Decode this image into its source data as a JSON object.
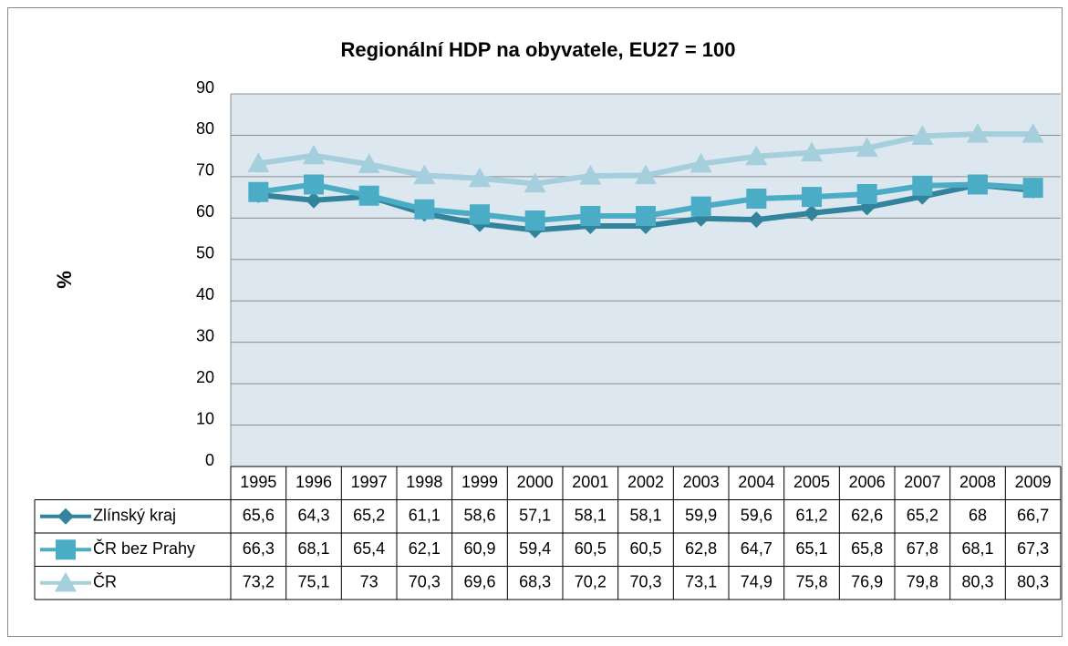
{
  "chart_data": {
    "type": "line",
    "title": "Regionální HDP na obyvatele, EU27 = 100",
    "y_label": "%",
    "categories": [
      "1995",
      "1996",
      "1997",
      "1998",
      "1999",
      "2000",
      "2001",
      "2002",
      "2003",
      "2004",
      "2005",
      "2006",
      "2007",
      "2008",
      "2009"
    ],
    "series": [
      {
        "name": "Zlínský kraj",
        "color": "#31849b",
        "marker": "diamond",
        "values": [
          65.6,
          64.3,
          65.2,
          61.1,
          58.6,
          57.1,
          58.1,
          58.1,
          59.9,
          59.6,
          61.2,
          62.6,
          65.2,
          68,
          66.7
        ],
        "value_labels": [
          "65,6",
          "64,3",
          "65,2",
          "61,1",
          "58,6",
          "57,1",
          "58,1",
          "58,1",
          "59,9",
          "59,6",
          "61,2",
          "62,6",
          "65,2",
          "68",
          "66,7"
        ]
      },
      {
        "name": "ČR bez Prahy",
        "color": "#4bacc6",
        "marker": "square",
        "values": [
          66.3,
          68.1,
          65.4,
          62.1,
          60.9,
          59.4,
          60.5,
          60.5,
          62.8,
          64.7,
          65.1,
          65.8,
          67.8,
          68.1,
          67.3
        ],
        "value_labels": [
          "66,3",
          "68,1",
          "65,4",
          "62,1",
          "60,9",
          "59,4",
          "60,5",
          "60,5",
          "62,8",
          "64,7",
          "65,1",
          "65,8",
          "67,8",
          "68,1",
          "67,3"
        ]
      },
      {
        "name": "ČR",
        "color": "#a5cfdd",
        "marker": "triangle",
        "values": [
          73.2,
          75.1,
          73,
          70.3,
          69.6,
          68.3,
          70.2,
          70.3,
          73.1,
          74.9,
          75.8,
          76.9,
          79.8,
          80.3,
          80.3
        ],
        "value_labels": [
          "73,2",
          "75,1",
          "73",
          "70,3",
          "69,6",
          "68,3",
          "70,2",
          "70,3",
          "73,1",
          "74,9",
          "75,8",
          "76,9",
          "79,8",
          "80,3",
          "80,3"
        ]
      }
    ],
    "ylim": [
      0,
      90
    ],
    "yticks": [
      0,
      10,
      20,
      30,
      40,
      50,
      60,
      70,
      80,
      90
    ],
    "grid": true
  }
}
